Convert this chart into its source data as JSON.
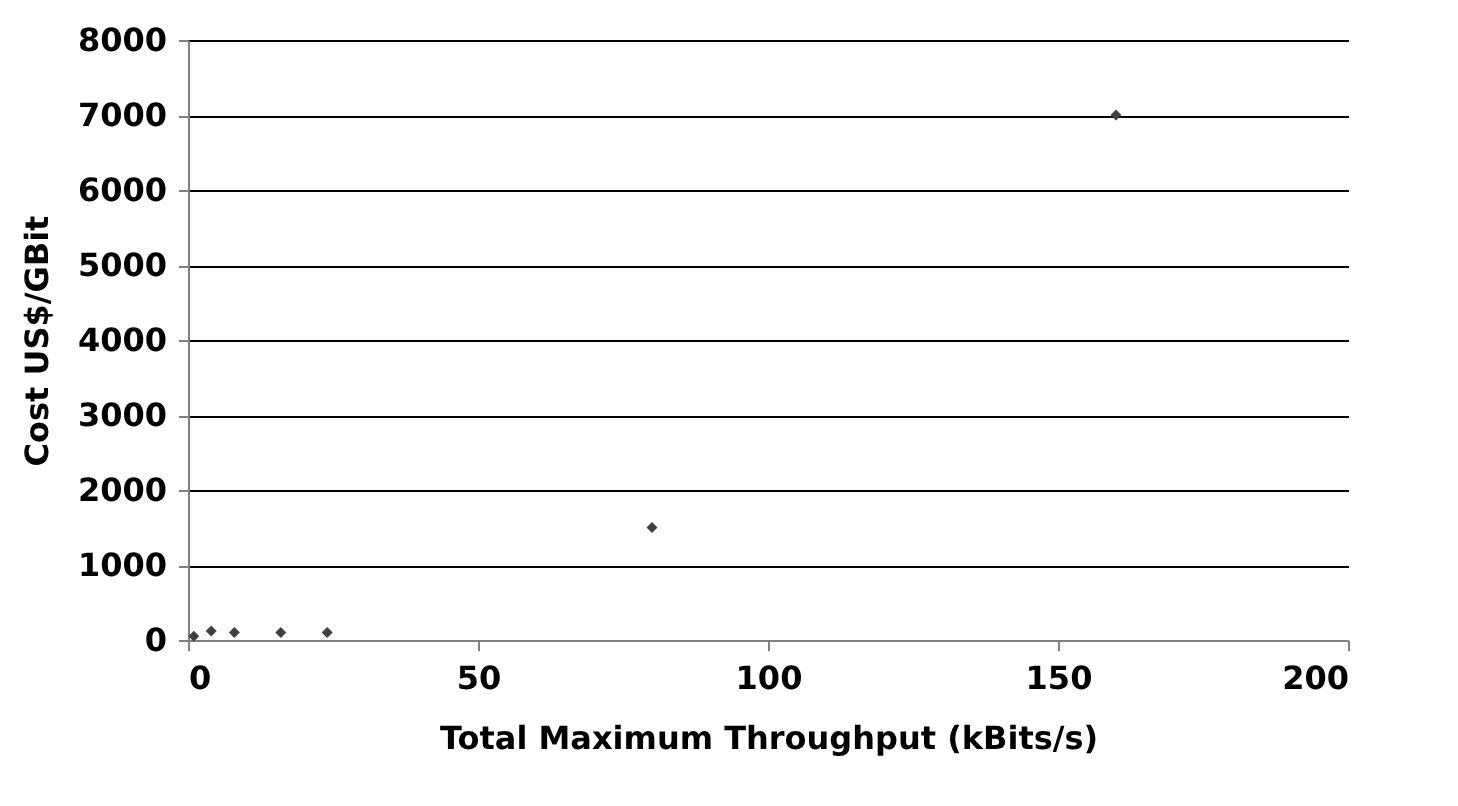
{
  "chart_data": {
    "type": "scatter",
    "xlabel": "Total Maximum Throughput (kBits/s)",
    "ylabel": "Cost US$/GBit",
    "x": [
      1,
      4,
      8,
      16,
      24,
      80,
      160
    ],
    "series": [
      {
        "color": "#404040",
        "values": [
          50,
          120,
          100,
          100,
          100,
          1500,
          7000
        ]
      }
    ],
    "xlim": [
      0,
      200
    ],
    "xticks": [
      0,
      50,
      100,
      150,
      200
    ],
    "ylim": [
      0,
      8000
    ],
    "yticks": [
      0,
      1000,
      2000,
      3000,
      4000,
      5000,
      6000,
      7000,
      8000
    ],
    "grid": "y",
    "marker": "diamond"
  }
}
